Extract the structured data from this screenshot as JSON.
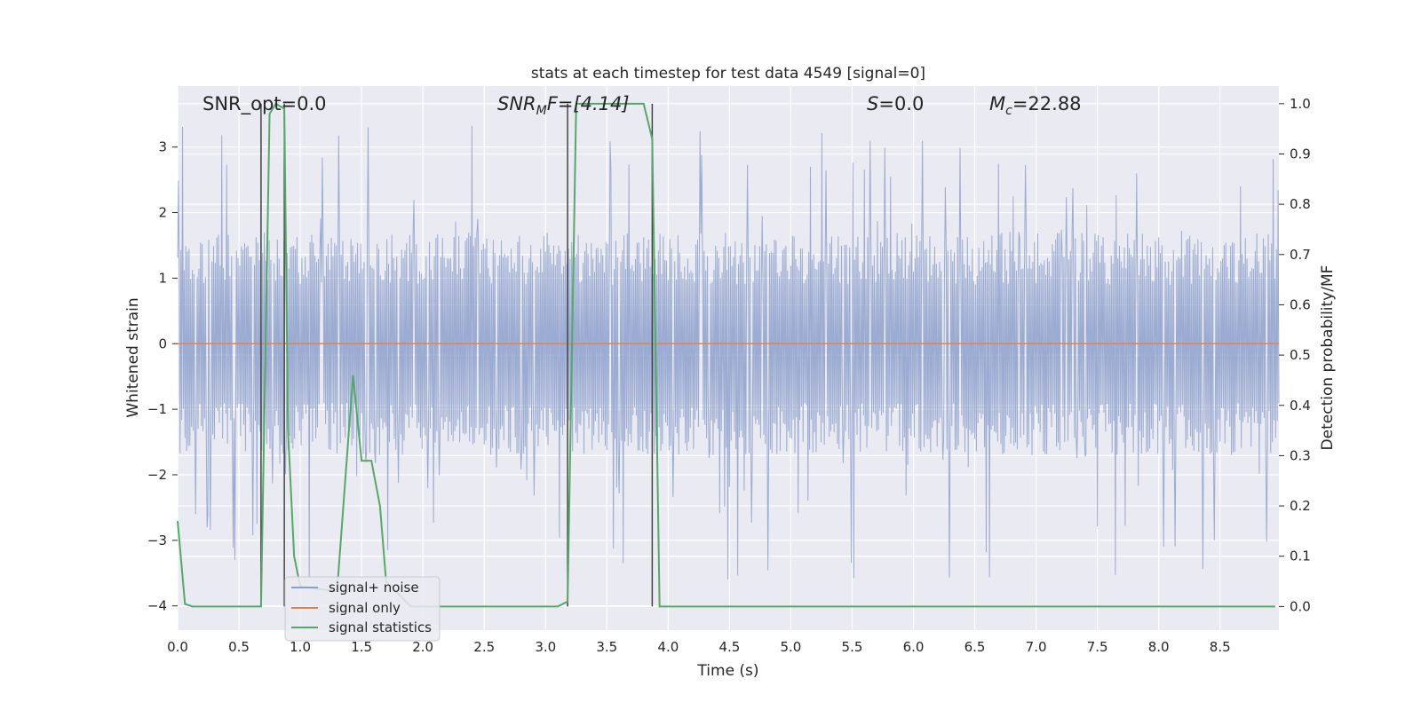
{
  "chart_data": {
    "type": "line",
    "title": "stats at each timestep for test data 4549 [signal=0]",
    "xlabel": "Time (s)",
    "ylabel_left": "Whitened strain",
    "ylabel_right": "Detection probability/MF",
    "xlim": [
      0.0,
      8.98
    ],
    "ylim_left": [
      -4.37,
      3.93
    ],
    "ylim_right": [
      -0.047,
      1.035
    ],
    "xticks": [
      0.0,
      0.5,
      1.0,
      1.5,
      2.0,
      2.5,
      3.0,
      3.5,
      4.0,
      4.5,
      5.0,
      5.5,
      6.0,
      6.5,
      7.0,
      7.5,
      8.0,
      8.5
    ],
    "xtick_labels": [
      "0.0",
      "0.5",
      "1.0",
      "1.5",
      "2.0",
      "2.5",
      "3.0",
      "3.5",
      "4.0",
      "4.5",
      "5.0",
      "5.5",
      "6.0",
      "6.5",
      "7.0",
      "7.5",
      "8.0",
      "8.5"
    ],
    "yticks_left": [
      3,
      2,
      1,
      0,
      -1,
      -2,
      -3,
      -4
    ],
    "ytick_labels_left": [
      "3",
      "2",
      "1",
      "0",
      "−1",
      "−2",
      "−3",
      "−4"
    ],
    "yticks_right": [
      1.0,
      0.9,
      0.8,
      0.7,
      0.6,
      0.5,
      0.4,
      0.3,
      0.2,
      0.1,
      0.0
    ],
    "ytick_labels_right": [
      "1.0",
      "0.9",
      "0.8",
      "0.7",
      "0.6",
      "0.5",
      "0.4",
      "0.3",
      "0.2",
      "0.1",
      "0.0"
    ],
    "grid": true,
    "legend_position": "lower-left",
    "colors": {
      "background": "#eaeaf2",
      "grid": "#ffffff",
      "noise": "#8da0cb",
      "signal_only": "#dd8452",
      "statistics": "#55a868",
      "marker": "#444444"
    },
    "annotations": {
      "snr_opt": "SNR_opt=0.0",
      "snr_mf_main": "SNR",
      "snr_mf_sub": "M",
      "snr_mf_rest": "F=[4.14]",
      "s_main": "S",
      "s_rest": "=0.0",
      "mc_main": "M",
      "mc_sub": "c",
      "mc_rest": "=22.88"
    },
    "series": [
      {
        "name": "signal+ noise",
        "description_axis": "left",
        "envelope": {
          "typical_band": [
            -1.7,
            1.7
          ],
          "peak_max": 3.35,
          "peak_min": -3.65,
          "samples_per_second": 150,
          "seed": 4549
        }
      },
      {
        "name": "signal only",
        "description_axis": "left",
        "x": [
          0.0,
          8.98
        ],
        "y": [
          0.0,
          0.0
        ]
      },
      {
        "name": "signal statistics",
        "description_axis": "right",
        "x": [
          0.0,
          0.06,
          0.12,
          0.5,
          0.68,
          0.75,
          0.8,
          0.87,
          0.9,
          0.95,
          1.0,
          1.3,
          1.43,
          1.5,
          1.58,
          1.65,
          1.7,
          1.9,
          3.1,
          3.18,
          3.25,
          3.3,
          3.6,
          3.8,
          3.87,
          3.93,
          4.0,
          8.95
        ],
        "y": [
          0.17,
          0.005,
          0.0,
          0.0,
          0.0,
          0.98,
          1.0,
          0.99,
          0.35,
          0.1,
          0.04,
          0.03,
          0.46,
          0.29,
          0.29,
          0.2,
          0.05,
          0.0,
          0.0,
          0.01,
          1.0,
          1.0,
          1.0,
          1.0,
          0.93,
          0.0,
          0.0,
          0.0
        ]
      }
    ],
    "marker_lines_x": [
      0.68,
      0.87,
      3.18,
      3.87
    ]
  }
}
